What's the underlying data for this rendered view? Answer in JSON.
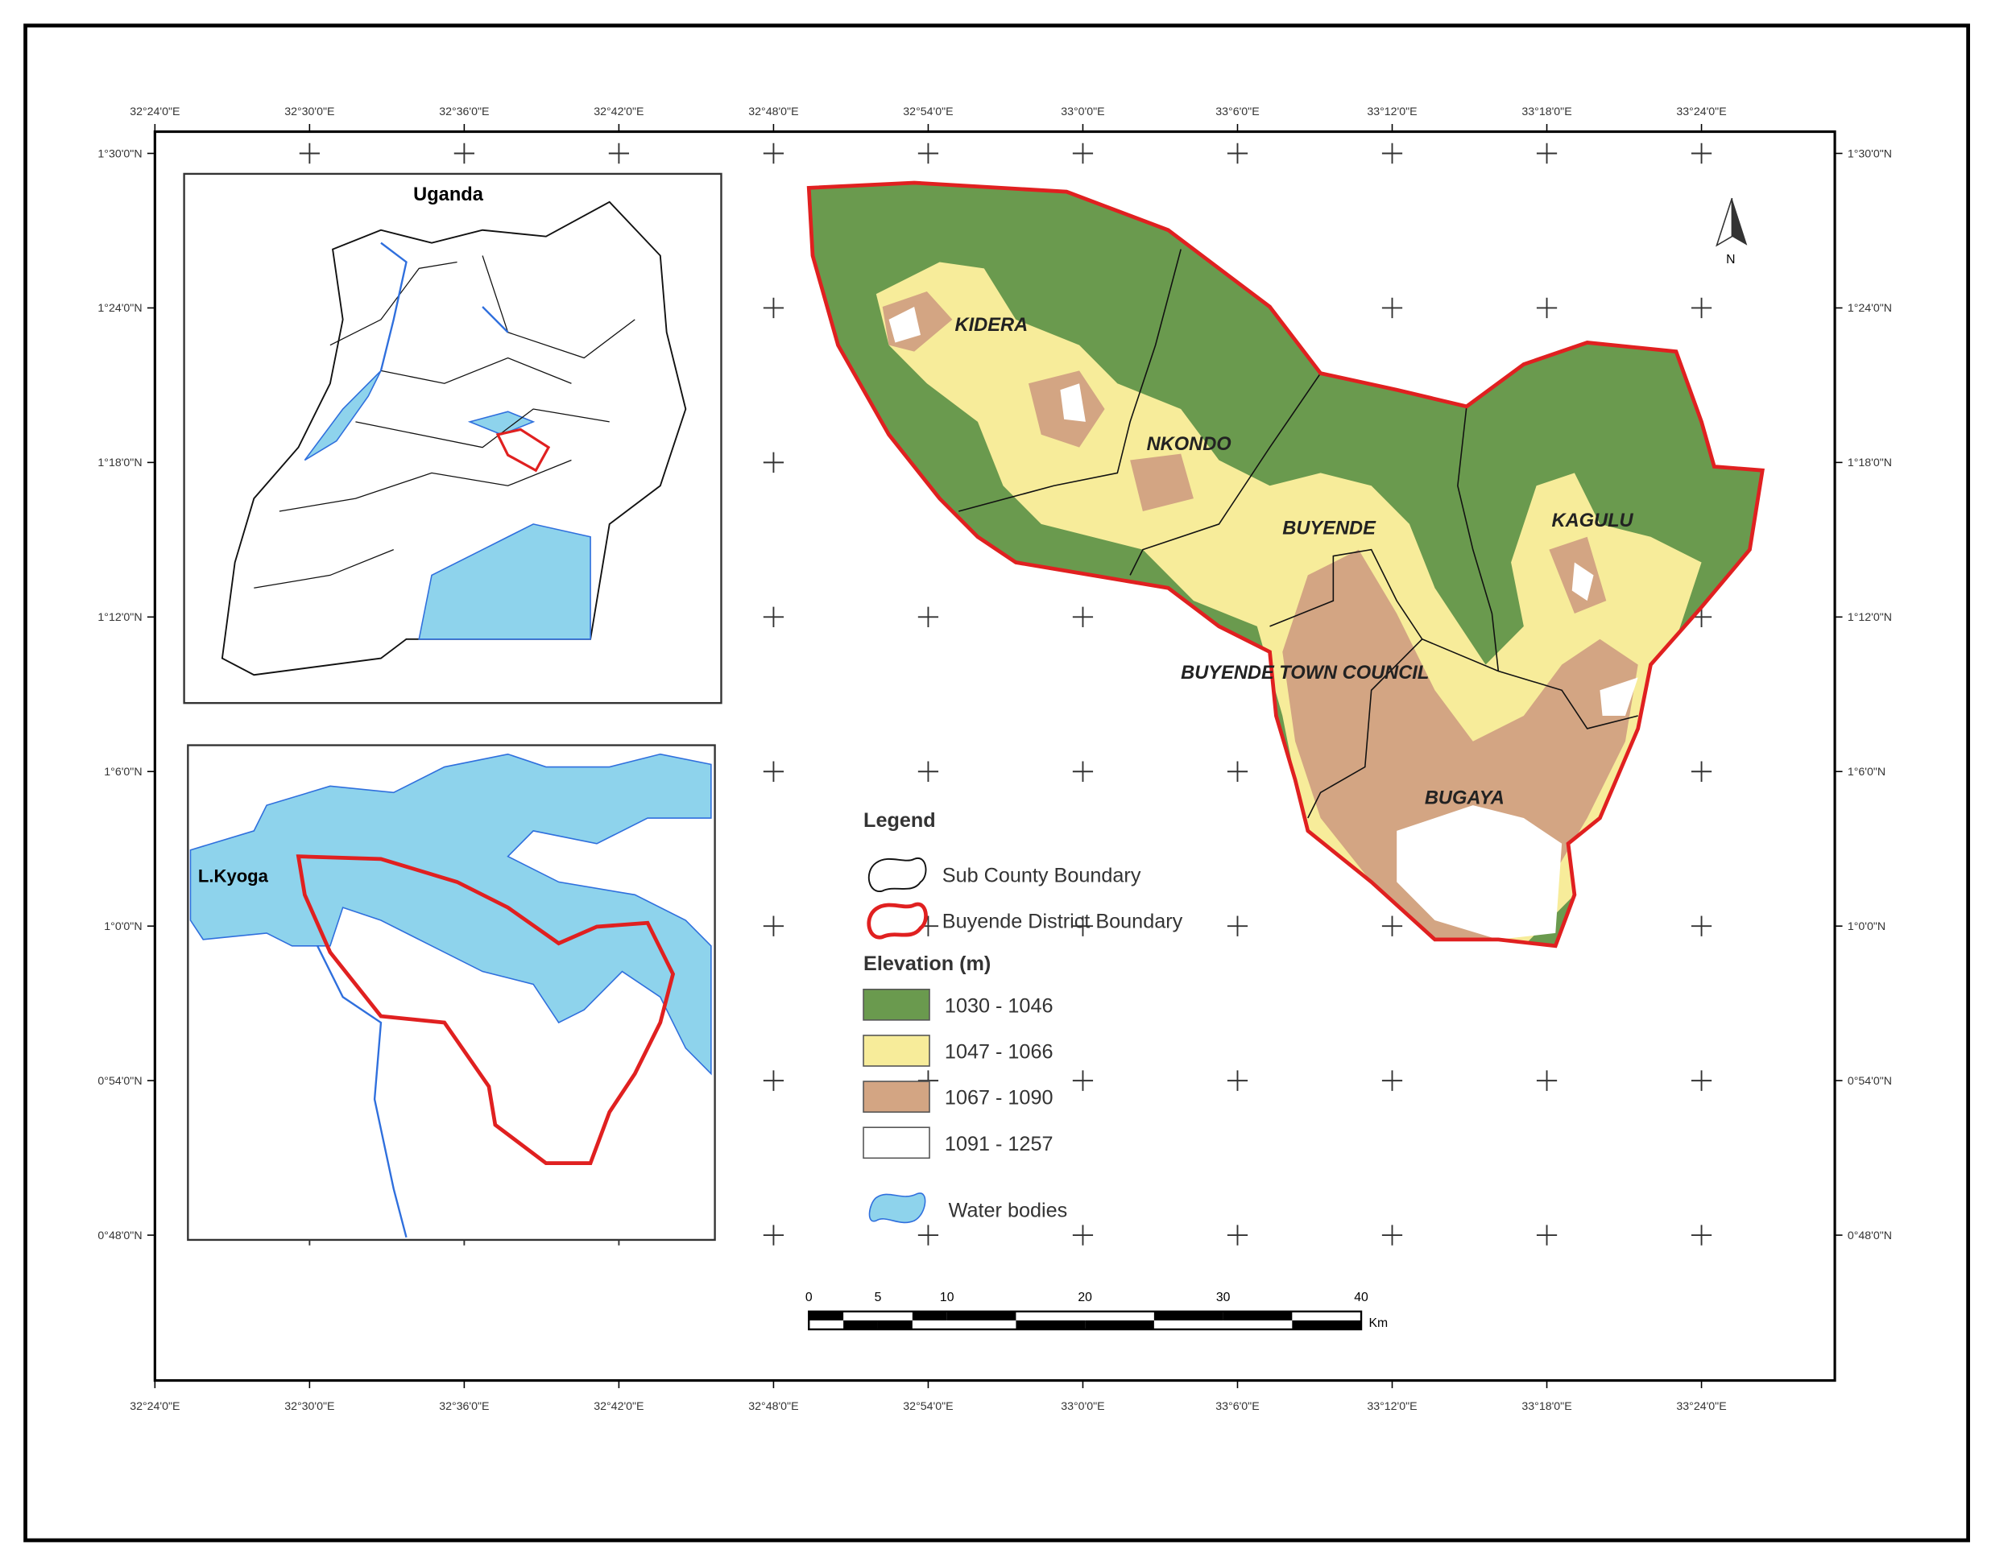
{
  "lon_labels": [
    "32°24'0\"E",
    "32°30'0\"E",
    "32°36'0\"E",
    "32°42'0\"E",
    "32°48'0\"E",
    "32°54'0\"E",
    "33°0'0\"E",
    "33°6'0\"E",
    "33°12'0\"E",
    "33°18'0\"E",
    "33°24'0\"E"
  ],
  "lat_labels": [
    "1°30'0\"N",
    "1°24'0\"N",
    "1°18'0\"N",
    "1°12'0\"N",
    "1°6'0\"N",
    "1°0'0\"N",
    "0°54'0\"N",
    "0°48'0\"N"
  ],
  "uganda_inset": {
    "title": "Uganda"
  },
  "kyoga_inset": {
    "label": "L.Kyoga"
  },
  "north_arrow": "N",
  "subcounties": [
    "KIDERA",
    "NKONDO",
    "BUYENDE",
    "KAGULU",
    "BUYENDE TOWN COUNCIL",
    "BUGAYA"
  ],
  "legend": {
    "title": "Legend",
    "boundaries": [
      "Sub County Boundary",
      "Buyende District Boundary"
    ],
    "elevation_title": "Elevation (m)",
    "elevation_classes": [
      {
        "label": "1030 - 1046",
        "color": "#6a9a4e"
      },
      {
        "label": "1047 - 1066",
        "color": "#f7ec9a"
      },
      {
        "label": "1067 - 1090",
        "color": "#d3a583"
      },
      {
        "label": "1091 - 1257",
        "color": "#ffffff"
      }
    ],
    "water": "Water bodies"
  },
  "scale_bar": {
    "ticks": [
      0,
      5,
      10,
      20,
      30,
      40
    ],
    "unit": "Km"
  }
}
